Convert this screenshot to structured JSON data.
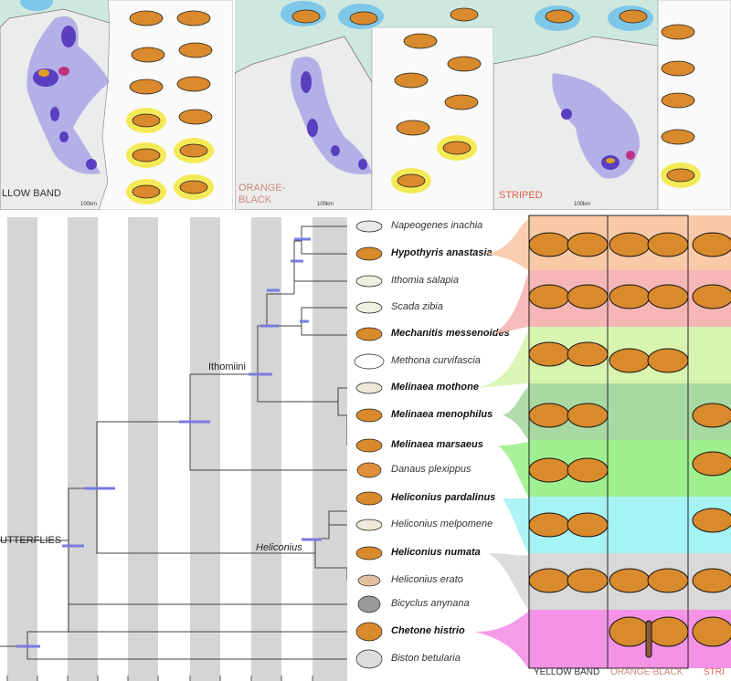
{
  "panels": [
    {
      "label": "YELLOW BAND",
      "label_shown": "LLOW BAND",
      "color": "#333333",
      "scale": "100km"
    },
    {
      "label": "ORANGE-\nBLACK",
      "label_line1": "ORANGE-",
      "label_line2": "BLACK",
      "color": "#c88a7a",
      "scale": "100km"
    },
    {
      "label": "STRIPED",
      "label_shown": "STRIPED",
      "color": "#e06050",
      "scale": "100km"
    }
  ],
  "tree": {
    "clade_ithomiini": "Ithomiini",
    "clade_heliconius": "Heliconius",
    "clade_butterflies": "UTTERFLIES"
  },
  "taxa": [
    {
      "name": "Napeogenes inachia",
      "bold": false
    },
    {
      "name": "Hypothyris anastasia",
      "bold": true
    },
    {
      "name": "Ithomia salapia",
      "bold": false
    },
    {
      "name": "Scada zibia",
      "bold": false
    },
    {
      "name": "Mechanitis messenoides",
      "bold": true
    },
    {
      "name": "Methona curvifascia",
      "bold": false
    },
    {
      "name": "Melinaea mothone",
      "bold": true
    },
    {
      "name": "Melinaea menophilus",
      "bold": true
    },
    {
      "name": "Melinaea marsaeus",
      "bold": true
    },
    {
      "name": "Danaus plexippus",
      "bold": false
    },
    {
      "name": "Heliconius pardalinus",
      "bold": true
    },
    {
      "name": "Heliconius melpomene",
      "bold": false
    },
    {
      "name": "Heliconius numata",
      "bold": true
    },
    {
      "name": "Heliconius erato",
      "bold": false
    },
    {
      "name": "Bicyclus anynana",
      "bold": false
    },
    {
      "name": "Chetone histrio",
      "bold": true
    },
    {
      "name": "Biston betularia",
      "bold": false
    }
  ],
  "columns": [
    {
      "label": "YELLOW BAND",
      "color": "#333333"
    },
    {
      "label": "ORANGE-BLACK",
      "color": "#c88a7a"
    },
    {
      "label": "STRI",
      "color": "#e06050"
    }
  ],
  "band_colors": [
    "#f9c9a8",
    "#f7b6b6",
    "#d8f5b0",
    "#a9d9a2",
    "#9ef08e",
    "#a6f3f5",
    "#d9d9d9",
    "#f492e6"
  ]
}
